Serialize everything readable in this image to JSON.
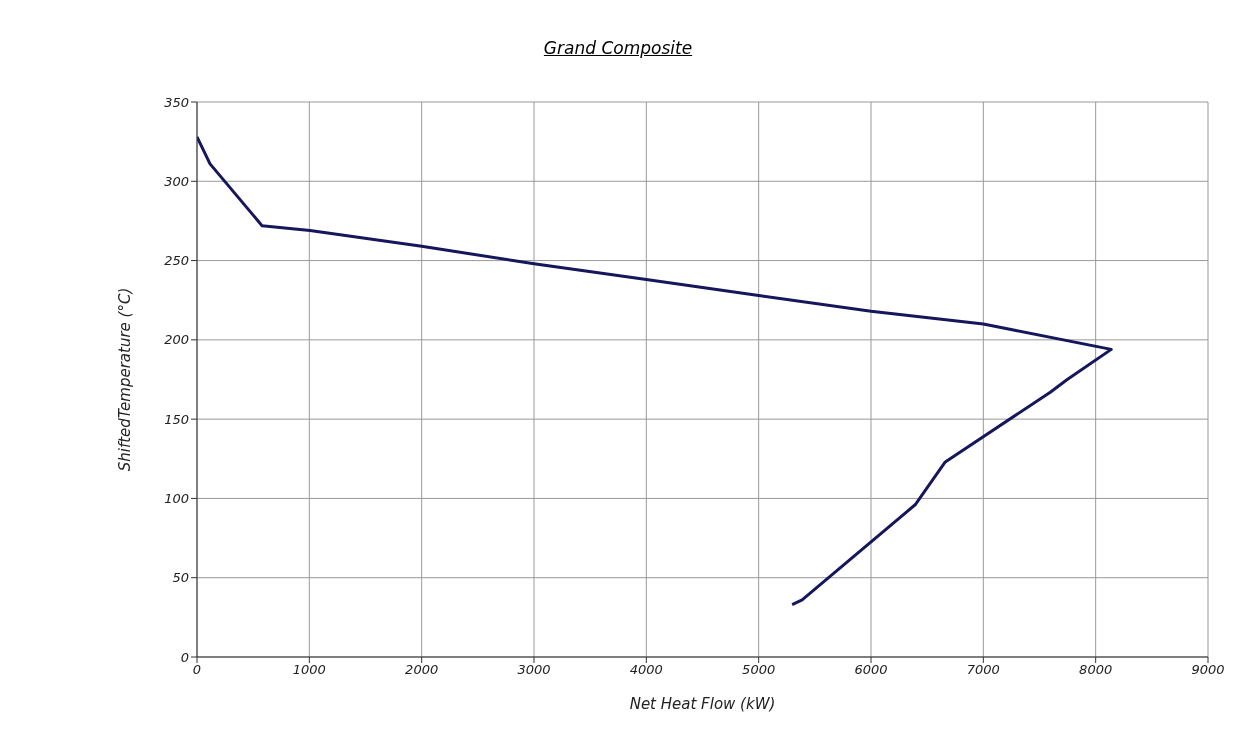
{
  "chart_data": {
    "type": "line",
    "title": "Grand Composite",
    "xlabel": "Net Heat Flow (kW)",
    "ylabel": "ShiftedTemperature (°C)",
    "x": [
      0,
      116,
      579,
      1006,
      2000,
      3000,
      4000,
      5000,
      6000,
      7000,
      7280,
      8139,
      7747,
      7596,
      6661,
      6393,
      5387,
      5298
    ],
    "series": [
      {
        "color": "#16165c",
        "values": [
          328,
          311,
          272,
          269,
          259,
          248,
          238,
          228,
          218,
          210,
          206,
          194,
          175,
          167,
          123,
          96,
          36,
          33
        ]
      }
    ],
    "xlim": [
      0,
      9000
    ],
    "xticks": [
      0,
      1000,
      2000,
      3000,
      4000,
      5000,
      6000,
      7000,
      8000,
      9000
    ],
    "ylim": [
      0,
      350
    ],
    "yticks": [
      0,
      50,
      100,
      150,
      200,
      250,
      300,
      350
    ],
    "grid": true,
    "marker": "none",
    "line_style": "solid"
  }
}
